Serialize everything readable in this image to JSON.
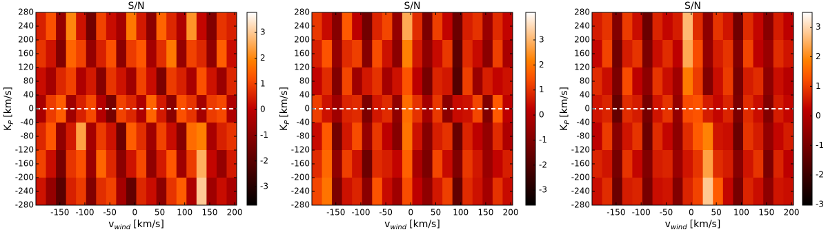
{
  "chart_data": [
    {
      "type": "heatmap",
      "title": "S/N",
      "cmap": "gist_heat",
      "xlabel": "v",
      "xlabel_sub": "wind",
      "xlabel_unit": "[km/s]",
      "ylabel": "K",
      "ylabel_sub": "P",
      "ylabel_unit": "[km/s]",
      "xlim": [
        -198,
        204
      ],
      "xticks": [
        -150,
        -100,
        -50,
        0,
        50,
        100,
        150,
        200
      ],
      "ylim": [
        -280,
        280
      ],
      "yticks": [
        -280,
        -240,
        -200,
        -160,
        -120,
        -80,
        -40,
        0,
        40,
        80,
        120,
        160,
        200,
        240,
        280
      ],
      "clim": [
        -3.72,
        3.78
      ],
      "cticks": [
        -3,
        -2,
        -1,
        0,
        1,
        2,
        3
      ],
      "hline": 0,
      "z": [
        [
          0.5,
          1.2,
          -0.8,
          2.0,
          0.3,
          -1.5,
          1.0,
          0.2,
          -0.5,
          1.8,
          0.4,
          -1.0,
          1.5,
          0.6,
          -0.3,
          2.2,
          0.1,
          -1.2,
          0.8,
          0.5
        ],
        [
          0.8,
          0.3,
          -1.2,
          1.5,
          1.0,
          -0.8,
          0.5,
          1.2,
          -1.0,
          0.9,
          1.3,
          -0.5,
          0.7,
          1.8,
          -0.8,
          1.0,
          0.6,
          -0.9,
          1.4,
          0.2
        ],
        [
          0.2,
          -0.5,
          0.6,
          1.0,
          -0.3,
          0.4,
          -1.1,
          0.8,
          0.3,
          -0.6,
          1.0,
          0.2,
          -1.3,
          0.9,
          0.5,
          -0.4,
          1.2,
          0.3,
          -0.7,
          0.6
        ],
        [
          -0.4,
          0.9,
          1.4,
          -0.6,
          0.5,
          1.1,
          -0.2,
          -1.4,
          1.0,
          0.6,
          -0.3,
          1.5,
          0.4,
          -1.0,
          1.2,
          0.8,
          -0.5,
          0.9,
          1.1,
          -0.3
        ],
        [
          0.6,
          1.3,
          -0.9,
          0.4,
          2.4,
          -0.5,
          0.9,
          0.3,
          -1.6,
          1.4,
          0.7,
          -0.6,
          1.0,
          0.2,
          -1.1,
          1.6,
          1.9,
          -0.4,
          0.5,
          0.8
        ],
        [
          1.0,
          0.2,
          -1.4,
          0.8,
          1.2,
          -0.7,
          1.5,
          0.6,
          -1.0,
          0.3,
          1.1,
          -0.9,
          0.4,
          1.3,
          -0.6,
          0.9,
          2.6,
          0.1,
          -0.8,
          0.4
        ],
        [
          0.3,
          -0.8,
          -2.0,
          0.5,
          0.9,
          -1.2,
          0.7,
          1.0,
          -0.5,
          -1.8,
          0.6,
          0.2,
          -1.0,
          0.8,
          1.4,
          -0.3,
          3.0,
          -0.6,
          0.2,
          -0.4
        ]
      ]
    },
    {
      "type": "heatmap",
      "title": "S/N",
      "cmap": "gist_heat",
      "xlabel": "v",
      "xlabel_sub": "wind",
      "xlabel_unit": "[km/s]",
      "ylabel": "K",
      "ylabel_sub": "P",
      "ylabel_unit": "[km/s]",
      "xlim": [
        -198,
        204
      ],
      "xticks": [
        -150,
        -100,
        -50,
        0,
        50,
        100,
        150,
        200
      ],
      "ylim": [
        -280,
        280
      ],
      "yticks": [
        -280,
        -240,
        -200,
        -160,
        -120,
        -80,
        -40,
        0,
        40,
        80,
        120,
        160,
        200,
        240,
        280
      ],
      "clim": [
        -3.6,
        4.1
      ],
      "cticks": [
        -3,
        -2,
        -1,
        0,
        1,
        2,
        3
      ],
      "hline": 0,
      "z": [
        [
          1.1,
          0.4,
          -0.9,
          1.6,
          0.2,
          -1.3,
          0.8,
          1.3,
          -0.6,
          2.8,
          0.9,
          -1.1,
          1.2,
          0.3,
          -1.4,
          0.7,
          1.0,
          -0.5,
          0.9,
          0.3
        ],
        [
          0.7,
          1.5,
          -0.6,
          0.9,
          1.2,
          -0.9,
          1.4,
          0.5,
          -0.8,
          2.2,
          0.6,
          -0.7,
          0.4,
          1.1,
          -1.7,
          0.9,
          0.4,
          -0.8,
          1.2,
          -0.2
        ],
        [
          0.3,
          0.9,
          -1.0,
          1.3,
          -0.4,
          0.6,
          1.0,
          -0.3,
          0.5,
          1.5,
          0.2,
          -1.2,
          0.8,
          0.6,
          -1.9,
          1.2,
          -0.5,
          0.7,
          0.3,
          0.5
        ],
        [
          1.2,
          0.5,
          -0.4,
          0.8,
          0.9,
          -1.1,
          0.6,
          0.9,
          -0.7,
          1.9,
          1.0,
          -0.3,
          1.1,
          -0.8,
          0.4,
          0.5,
          1.3,
          -1.0,
          1.6,
          0.2
        ],
        [
          0.4,
          1.6,
          -1.3,
          0.6,
          1.4,
          -0.6,
          1.1,
          0.2,
          -0.9,
          2.0,
          0.5,
          -0.9,
          0.7,
          1.0,
          -1.5,
          0.8,
          0.2,
          -0.6,
          0.9,
          -0.1
        ],
        [
          0.9,
          1.8,
          -0.7,
          1.2,
          0.5,
          -1.4,
          0.9,
          0.7,
          0.3,
          1.7,
          -0.2,
          -1.1,
          1.3,
          0.4,
          -1.0,
          1.1,
          0.6,
          -0.5,
          0.3,
          0.7
        ],
        [
          1.3,
          2.0,
          -1.1,
          0.5,
          0.8,
          -0.8,
          1.5,
          0.4,
          -0.4,
          1.4,
          0.2,
          -0.7,
          0.6,
          1.2,
          -1.6,
          0.9,
          0.5,
          -0.3,
          1.0,
          0.4
        ]
      ]
    },
    {
      "type": "heatmap",
      "title": "S/N",
      "cmap": "gist_heat",
      "xlabel": "v",
      "xlabel_sub": "wind",
      "xlabel_unit": "[km/s]",
      "ylabel": "K",
      "ylabel_sub": "P",
      "ylabel_unit": "[km/s]",
      "xlim": [
        -198,
        204
      ],
      "xticks": [
        -150,
        -100,
        -50,
        0,
        50,
        100,
        150,
        200
      ],
      "ylim": [
        -280,
        280
      ],
      "yticks": [
        -280,
        -240,
        -200,
        -160,
        -120,
        -80,
        -40,
        0,
        40,
        80,
        120,
        160,
        200,
        240,
        280
      ],
      "clim": [
        -3.02,
        3.5
      ],
      "cticks": [
        -3,
        -2,
        -1,
        0,
        1,
        2,
        3
      ],
      "hline": 0,
      "z": [
        [
          0.6,
          0.9,
          -0.8,
          1.0,
          0.4,
          -1.2,
          0.7,
          0.3,
          0.6,
          2.6,
          0.8,
          -0.6,
          0.9,
          0.5,
          -1.1,
          0.8,
          0.3,
          -0.7,
          0.6,
          0.2
        ],
        [
          0.3,
          1.1,
          -1.1,
          0.6,
          0.9,
          -0.9,
          0.4,
          0.8,
          0.2,
          2.4,
          1.2,
          -0.5,
          0.6,
          0.9,
          -0.8,
          1.1,
          0.2,
          -0.4,
          0.8,
          0.5
        ],
        [
          0.8,
          0.4,
          -0.9,
          1.2,
          0.2,
          -0.6,
          0.9,
          0.4,
          -0.3,
          1.8,
          1.0,
          -0.8,
          0.4,
          1.0,
          -1.0,
          0.6,
          0.8,
          -0.6,
          0.4,
          0.1
        ],
        [
          0.5,
          0.7,
          -1.3,
          0.8,
          0.6,
          -1.0,
          0.5,
          0.9,
          -0.5,
          1.2,
          1.3,
          0.6,
          0.3,
          0.7,
          -0.9,
          0.8,
          0.4,
          -0.8,
          0.6,
          0.3
        ],
        [
          0.2,
          1.0,
          -0.7,
          0.5,
          0.9,
          -1.2,
          0.8,
          0.3,
          -0.6,
          0.8,
          1.4,
          1.9,
          0.5,
          0.4,
          -1.2,
          0.9,
          0.6,
          -0.5,
          0.3,
          0.6
        ],
        [
          0.7,
          0.5,
          -1.0,
          0.9,
          0.3,
          -0.8,
          0.6,
          0.7,
          -0.4,
          0.5,
          0.9,
          2.3,
          0.8,
          0.6,
          -0.7,
          0.5,
          0.9,
          -0.9,
          0.7,
          0.2
        ],
        [
          0.4,
          0.8,
          -1.2,
          0.6,
          0.7,
          -1.0,
          0.4,
          0.5,
          -0.8,
          0.7,
          1.1,
          2.8,
          1.4,
          0.3,
          -1.0,
          0.7,
          0.4,
          -0.6,
          0.5,
          0.4
        ]
      ]
    }
  ]
}
